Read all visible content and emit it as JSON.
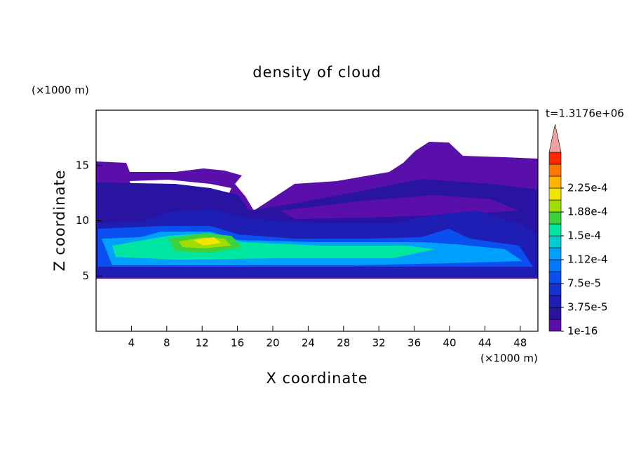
{
  "chart_data": {
    "type": "contour",
    "title": "density of cloud",
    "annotation": "t=1.3176e+06",
    "x_label": "X coordinate",
    "y_label": "Z coordinate",
    "x_unit": "(×1000 m)",
    "y_unit": "(×1000 m)",
    "xlim": [
      0,
      50
    ],
    "ylim": [
      0,
      20
    ],
    "xticks": [
      4,
      8,
      12,
      16,
      20,
      24,
      28,
      32,
      36,
      40,
      44,
      48
    ],
    "yticks": [
      5,
      10,
      15
    ],
    "colorbar": {
      "ticks": [
        {
          "value": 1e-16,
          "label": "1e-16"
        },
        {
          "value": 3.75e-05,
          "label": "3.75e-5"
        },
        {
          "value": 7.5e-05,
          "label": "7.5e-5"
        },
        {
          "value": 0.000112,
          "label": "1.12e-4"
        },
        {
          "value": 0.00015,
          "label": "1.5e-4"
        },
        {
          "value": 0.000188,
          "label": "1.88e-4"
        },
        {
          "value": 0.000225,
          "label": "2.25e-4"
        }
      ],
      "colors": [
        "#5a0faa",
        "#2814a0",
        "#1e1eb4",
        "#1432d2",
        "#0a50f0",
        "#0078ff",
        "#00a0ff",
        "#00cdd2",
        "#00e6a0",
        "#3cd23c",
        "#a0dc00",
        "#f0e600",
        "#ffb400",
        "#ff7800",
        "#ff2800"
      ],
      "extend_color": "#f0a0a0"
    }
  }
}
